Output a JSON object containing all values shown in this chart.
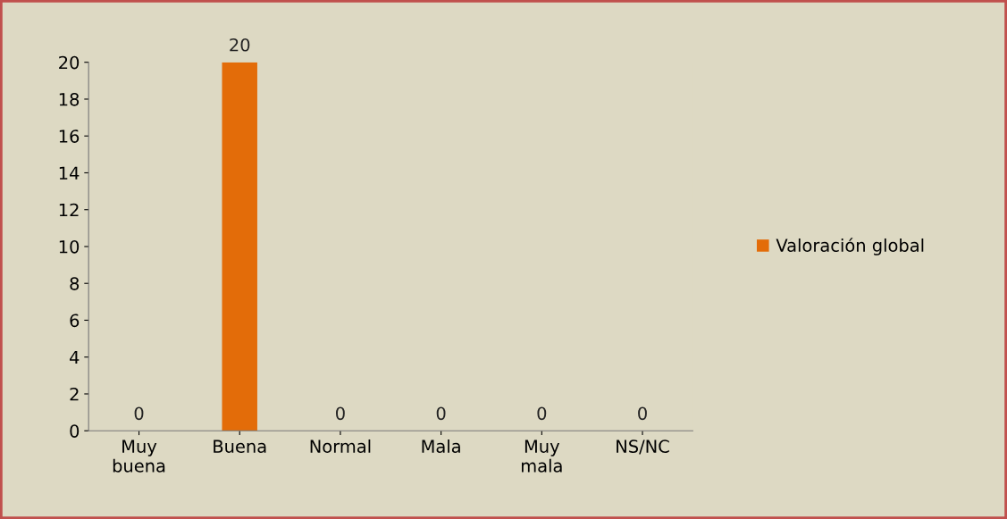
{
  "chart_data": {
    "type": "bar",
    "categories": [
      "Muy buena",
      "Buena",
      "Normal",
      "Mala",
      "Muy mala",
      "NS/NC"
    ],
    "series": [
      {
        "name": "Valoración global",
        "color": "#e36c09",
        "values": [
          0,
          20,
          0,
          0,
          0,
          0
        ]
      }
    ],
    "ylim": [
      0,
      20
    ],
    "yticks": [
      0,
      2,
      4,
      6,
      8,
      10,
      12,
      14,
      16,
      18,
      20
    ],
    "data_labels": true,
    "legend": "right",
    "grid": false
  }
}
